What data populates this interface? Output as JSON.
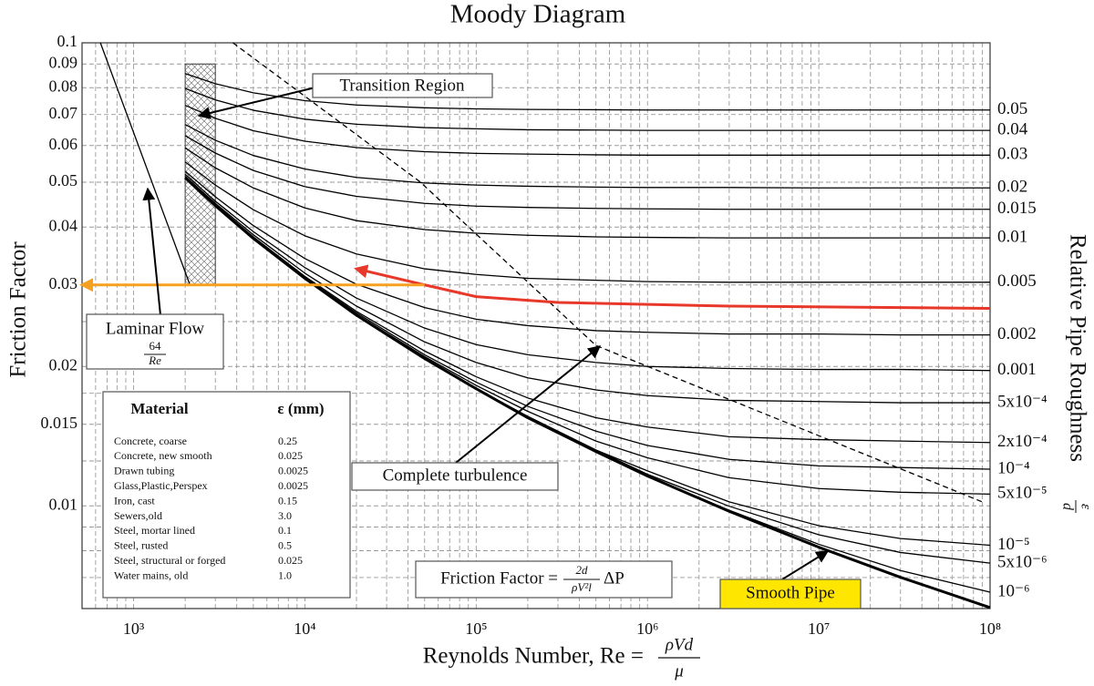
{
  "chart_data": {
    "type": "line",
    "title": "Moody Diagram",
    "xlabel": {
      "text": "Reynolds Number, Re =",
      "numerator": "ρVd",
      "denominator": "μ"
    },
    "ylabel": "Friction Factor",
    "y2label": {
      "text": "Relative Pipe Roughness",
      "numerator": "ε",
      "denominator": "d"
    },
    "xscale": "log",
    "yscale": "log",
    "grid": true,
    "xlim": [
      500,
      100000000
    ],
    "ylim": [
      0.006,
      0.1
    ],
    "xticks": [
      {
        "value": 1000,
        "label": "10³"
      },
      {
        "value": 10000,
        "label": "10⁴"
      },
      {
        "value": 100000,
        "label": "10⁵"
      },
      {
        "value": 1000000,
        "label": "10⁶"
      },
      {
        "value": 10000000,
        "label": "10⁷"
      },
      {
        "value": 100000000,
        "label": "10⁸"
      }
    ],
    "xminorticks": [
      600,
      700,
      800,
      900,
      2000,
      3000,
      4000,
      5000,
      6000,
      7000,
      8000,
      9000,
      20000,
      30000,
      40000,
      50000,
      60000,
      70000,
      80000,
      90000,
      200000,
      300000,
      400000,
      500000,
      600000,
      700000,
      800000,
      900000,
      2000000,
      3000000,
      4000000,
      5000000,
      6000000,
      7000000,
      8000000,
      9000000,
      20000000,
      30000000,
      40000000,
      50000000,
      60000000,
      70000000,
      80000000,
      90000000
    ],
    "yticks": [
      0.1,
      0.09,
      0.08,
      0.07,
      0.06,
      0.05,
      0.04,
      0.03,
      0.02,
      0.015,
      0.01
    ],
    "yminorticks": [
      0.025,
      0.0175,
      0.0125,
      0.009,
      0.008,
      0.007
    ],
    "transition_box": {
      "x": [
        2000,
        3000
      ],
      "y": [
        0.03,
        0.09
      ]
    },
    "series": [
      {
        "name": "0.05",
        "color": "#000000",
        "x": [
          2000,
          3000,
          5000,
          10000,
          20000,
          50000,
          100000,
          200000,
          500000,
          1000000,
          3000000,
          10000000,
          30000000,
          100000000
        ],
        "values": [
          0.0858,
          0.0816,
          0.078,
          0.075,
          0.0734,
          0.0724,
          0.072,
          0.0718,
          0.0717,
          0.0716,
          0.0716,
          0.0716,
          0.0716,
          0.0716
        ]
      },
      {
        "name": "0.04",
        "color": "#000000",
        "x": [
          2000,
          3000,
          5000,
          10000,
          20000,
          50000,
          100000,
          200000,
          500000,
          1000000,
          3000000,
          10000000,
          30000000,
          100000000
        ],
        "values": [
          0.0797,
          0.0753,
          0.0715,
          0.0684,
          0.0667,
          0.0656,
          0.0652,
          0.0649,
          0.0648,
          0.0647,
          0.0647,
          0.0647,
          0.0647,
          0.0647
        ]
      },
      {
        "name": "0.03",
        "color": "#000000",
        "x": [
          2000,
          3000,
          5000,
          10000,
          20000,
          50000,
          100000,
          200000,
          500000,
          1000000,
          3000000,
          10000000,
          30000000,
          100000000
        ],
        "values": [
          0.0733,
          0.0687,
          0.0646,
          0.0613,
          0.0594,
          0.0582,
          0.0577,
          0.0575,
          0.0573,
          0.0572,
          0.0572,
          0.0572,
          0.0572,
          0.0572
        ]
      },
      {
        "name": "0.02",
        "color": "#000000",
        "x": [
          2000,
          3000,
          5000,
          10000,
          20000,
          50000,
          100000,
          200000,
          500000,
          1000000,
          3000000,
          10000000,
          30000000,
          100000000
        ],
        "values": [
          0.0666,
          0.0616,
          0.0571,
          0.0534,
          0.0512,
          0.0498,
          0.0493,
          0.049,
          0.0488,
          0.0487,
          0.0487,
          0.0486,
          0.0486,
          0.0486
        ]
      },
      {
        "name": "0.015",
        "color": "#000000",
        "x": [
          2000,
          3000,
          5000,
          10000,
          20000,
          50000,
          100000,
          200000,
          500000,
          1000000,
          3000000,
          10000000,
          30000000,
          100000000
        ],
        "values": [
          0.063,
          0.0578,
          0.053,
          0.0489,
          0.0466,
          0.045,
          0.0444,
          0.0441,
          0.0439,
          0.0438,
          0.0437,
          0.0437,
          0.0437,
          0.0437
        ]
      },
      {
        "name": "0.01",
        "color": "#000000",
        "x": [
          2000,
          3000,
          5000,
          10000,
          20000,
          50000,
          100000,
          200000,
          500000,
          1000000,
          3000000,
          10000000,
          30000000,
          100000000
        ],
        "values": [
          0.0593,
          0.0537,
          0.0486,
          0.044,
          0.0413,
          0.0395,
          0.0388,
          0.0384,
          0.0381,
          0.038,
          0.0379,
          0.0379,
          0.0379,
          0.0379
        ]
      },
      {
        "name": "0.005",
        "color": "#000000",
        "x": [
          2000,
          3000,
          5000,
          10000,
          20000,
          50000,
          100000,
          200000,
          500000,
          1000000,
          3000000,
          10000000,
          30000000,
          100000000
        ],
        "values": [
          0.0553,
          0.0493,
          0.0436,
          0.0383,
          0.035,
          0.0325,
          0.0316,
          0.031,
          0.0307,
          0.0305,
          0.0304,
          0.0304,
          0.0304,
          0.0304
        ]
      },
      {
        "name": "0.002",
        "color": "#000000",
        "x": [
          2000,
          3000,
          5000,
          10000,
          20000,
          50000,
          100000,
          200000,
          500000,
          1000000,
          3000000,
          10000000,
          30000000,
          100000000
        ],
        "values": [
          0.0528,
          0.0465,
          0.0403,
          0.0342,
          0.0301,
          0.0268,
          0.0253,
          0.0245,
          0.0239,
          0.0237,
          0.0235,
          0.0235,
          0.0234,
          0.0234
        ]
      },
      {
        "name": "0.001",
        "color": "#000000",
        "x": [
          2000,
          3000,
          5000,
          10000,
          20000,
          50000,
          100000,
          200000,
          500000,
          1000000,
          3000000,
          10000000,
          30000000,
          100000000
        ],
        "values": [
          0.052,
          0.0455,
          0.0391,
          0.0327,
          0.0281,
          0.0242,
          0.0223,
          0.0212,
          0.0204,
          0.02,
          0.0198,
          0.0197,
          0.0197,
          0.0196
        ]
      },
      {
        "name": "5x10⁻⁴",
        "color": "#000000",
        "x": [
          2000,
          3000,
          5000,
          10000,
          20000,
          50000,
          100000,
          200000,
          500000,
          1000000,
          3000000,
          10000000,
          30000000,
          100000000
        ],
        "values": [
          0.0515,
          0.045,
          0.0385,
          0.0318,
          0.027,
          0.0226,
          0.0204,
          0.0189,
          0.0178,
          0.0173,
          0.0169,
          0.0168,
          0.0167,
          0.0167
        ]
      },
      {
        "name": "2x10⁻⁴",
        "color": "#000000",
        "x": [
          2000,
          3000,
          5000,
          10000,
          20000,
          50000,
          100000,
          200000,
          500000,
          1000000,
          3000000,
          10000000,
          30000000,
          100000000
        ],
        "values": [
          0.0513,
          0.0447,
          0.0381,
          0.0313,
          0.0263,
          0.0216,
          0.019,
          0.0171,
          0.0155,
          0.0148,
          0.0141,
          0.0139,
          0.0138,
          0.0137
        ]
      },
      {
        "name": "10⁻⁴",
        "color": "#000000",
        "x": [
          2000,
          3000,
          5000,
          10000,
          20000,
          50000,
          100000,
          200000,
          500000,
          1000000,
          3000000,
          10000000,
          30000000,
          100000000
        ],
        "values": [
          0.0512,
          0.0446,
          0.038,
          0.0311,
          0.0261,
          0.0212,
          0.0185,
          0.0164,
          0.0145,
          0.0135,
          0.0126,
          0.0122,
          0.0121,
          0.012
        ]
      },
      {
        "name": "5x10⁻⁵",
        "color": "#000000",
        "x": [
          2000,
          3000,
          5000,
          10000,
          20000,
          50000,
          100000,
          200000,
          500000,
          1000000,
          3000000,
          10000000,
          30000000,
          100000000
        ],
        "values": [
          0.0511,
          0.0445,
          0.0379,
          0.0311,
          0.0259,
          0.021,
          0.0182,
          0.016,
          0.0138,
          0.0127,
          0.0115,
          0.0109,
          0.0107,
          0.0106
        ]
      },
      {
        "name": "10⁻⁵",
        "color": "#000000",
        "x": [
          2000,
          3000,
          5000,
          10000,
          20000,
          50000,
          100000,
          200000,
          500000,
          1000000,
          3000000,
          10000000,
          30000000,
          100000000
        ],
        "values": [
          0.0511,
          0.0445,
          0.0379,
          0.031,
          0.0258,
          0.0208,
          0.0179,
          0.0156,
          0.0132,
          0.0119,
          0.0102,
          0.00906,
          0.0085,
          0.00822
        ]
      },
      {
        "name": "5x10⁻⁶",
        "color": "#000000",
        "x": [
          2000,
          3000,
          5000,
          10000,
          20000,
          50000,
          100000,
          200000,
          500000,
          1000000,
          3000000,
          10000000,
          30000000,
          100000000
        ],
        "values": [
          0.0511,
          0.0445,
          0.0379,
          0.031,
          0.0258,
          0.0208,
          0.0179,
          0.0156,
          0.0132,
          0.0117,
          0.00998,
          0.00866,
          0.00793,
          0.00752
        ]
      },
      {
        "name": "10⁻⁶",
        "color": "#000000",
        "x": [
          2000,
          3000,
          5000,
          10000,
          20000,
          50000,
          100000,
          200000,
          500000,
          1000000,
          3000000,
          10000000,
          30000000,
          100000000
        ],
        "values": [
          0.0511,
          0.0445,
          0.0379,
          0.031,
          0.0258,
          0.0208,
          0.0179,
          0.0155,
          0.0131,
          0.0116,
          0.00978,
          0.00826,
          0.00725,
          0.00651
        ]
      },
      {
        "color": "#000000",
        "style": "thick",
        "x": [
          2000,
          3000,
          5000,
          10000,
          20000,
          50000,
          100000,
          200000,
          500000,
          1000000,
          3000000,
          10000000,
          30000000,
          100000000
        ],
        "values": [
          0.0511,
          0.0445,
          0.0378,
          0.031,
          0.0258,
          0.0208,
          0.0179,
          0.0155,
          0.0131,
          0.0116,
          0.00973,
          0.00814,
          0.00701,
          0.00603
        ]
      },
      {
        "color": "#000000",
        "x": [
          640,
          2133
        ],
        "values": [
          0.1,
          0.03
        ]
      },
      {
        "color": "#000000",
        "style": "dashed",
        "x": [
          3800,
          47000,
          500000,
          90000000
        ],
        "values": [
          0.1,
          0.0501,
          0.0222,
          0.0102
        ]
      },
      {
        "color": "#e8382a",
        "style": "thick",
        "arrow": "start",
        "x": [
          20000,
          50000,
          100000,
          300000,
          3000000,
          100000000
        ],
        "values": [
          0.0325,
          0.03,
          0.0283,
          0.0275,
          0.027,
          0.0267
        ]
      },
      {
        "color": "#f5a020",
        "style": "thick",
        "arrow": "end",
        "x": [
          50000,
          500
        ],
        "values": [
          0.03,
          0.03
        ]
      }
    ],
    "annotations": {
      "transition_region": "Transition Region",
      "laminar_flow": {
        "text": "Laminar Flow",
        "numerator": "64",
        "denominator": "Re"
      },
      "complete_turbulence": "Complete turbulence",
      "smooth_pipe": "Smooth Pipe",
      "friction_factor": {
        "text": "Friction Factor =",
        "numerator": "2d",
        "denominator": "ρV²l",
        "suffix": "ΔP"
      }
    },
    "material_table": {
      "headers": [
        "Material",
        "ε (mm)"
      ],
      "rows": [
        [
          "Concrete, coarse",
          "0.25"
        ],
        [
          "Concrete, new smooth",
          "0.025"
        ],
        [
          "Drawn tubing",
          "0.0025"
        ],
        [
          "Glass,Plastic,Perspex",
          "0.0025"
        ],
        [
          "Iron, cast",
          "0.15"
        ],
        [
          "Sewers,old",
          "3.0"
        ],
        [
          "Steel, mortar lined",
          "0.1"
        ],
        [
          "Steel, rusted",
          "0.5"
        ],
        [
          "Steel, structural or forged",
          "0.025"
        ],
        [
          "Water mains, old",
          "1.0"
        ]
      ]
    }
  }
}
